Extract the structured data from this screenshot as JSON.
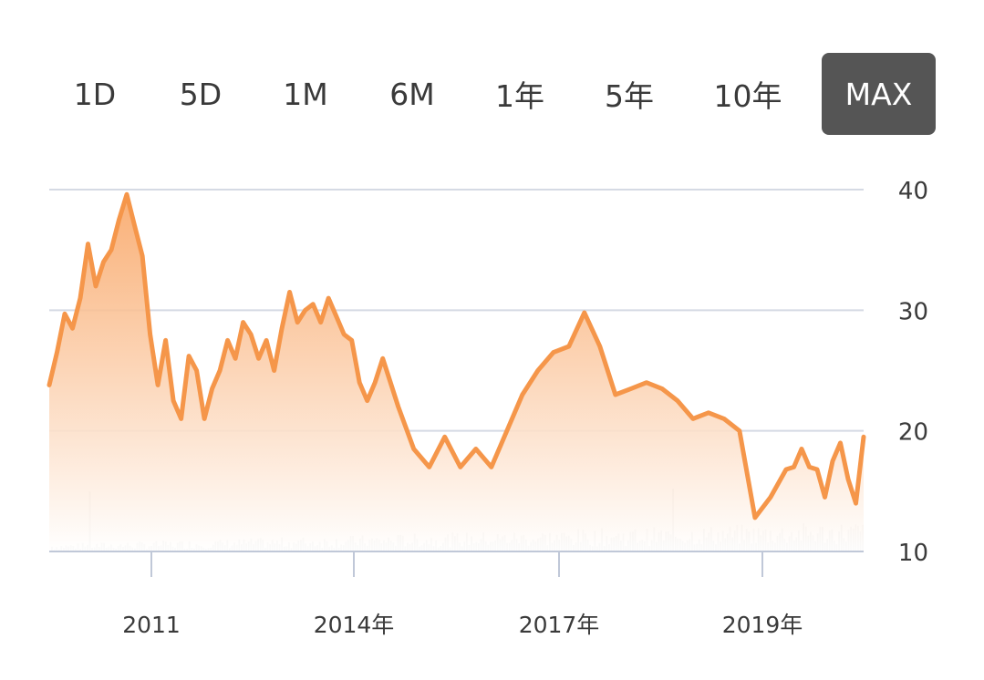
{
  "range_tabs": [
    {
      "label": "1D",
      "active": false
    },
    {
      "label": "5D",
      "active": false
    },
    {
      "label": "1M",
      "active": false
    },
    {
      "label": "6M",
      "active": false
    },
    {
      "label": "1年",
      "active": false
    },
    {
      "label": "5年",
      "active": false
    },
    {
      "label": "10年",
      "active": false
    },
    {
      "label": "MAX",
      "active": true
    }
  ],
  "colors": {
    "line": "#f5964a",
    "fill_top": "#f8a25f",
    "grid": "#d5dae4",
    "volume": "#cccccc",
    "active_tab": "#555555"
  },
  "chart_data": {
    "type": "area",
    "y_axis_position": "right",
    "ylim": [
      10,
      40
    ],
    "y_ticks": [
      "40",
      "30",
      "20",
      "10"
    ],
    "x_ticks": [
      "2011",
      "2014年",
      "2017年",
      "2019年"
    ],
    "grid": "horizontal",
    "x": [
      2009.5,
      2009.6,
      2009.7,
      2009.8,
      2009.9,
      2010.0,
      2010.1,
      2010.2,
      2010.3,
      2010.4,
      2010.5,
      2010.6,
      2010.7,
      2010.8,
      2010.9,
      2011.0,
      2011.1,
      2011.2,
      2011.3,
      2011.4,
      2011.5,
      2011.6,
      2011.7,
      2011.8,
      2011.9,
      2012.0,
      2012.1,
      2012.2,
      2012.3,
      2012.4,
      2012.5,
      2012.6,
      2012.7,
      2012.8,
      2012.9,
      2013.0,
      2013.1,
      2013.2,
      2013.3,
      2013.4,
      2013.5,
      2013.6,
      2013.7,
      2013.8,
      2013.9,
      2014.0,
      2014.2,
      2014.4,
      2014.6,
      2014.8,
      2015.0,
      2015.2,
      2015.4,
      2015.6,
      2015.8,
      2016.0,
      2016.2,
      2016.4,
      2016.6,
      2016.8,
      2017.0,
      2017.2,
      2017.4,
      2017.6,
      2017.8,
      2018.0,
      2018.2,
      2018.4,
      2018.6,
      2018.8,
      2019.0,
      2019.1,
      2019.2,
      2019.3,
      2019.4,
      2019.5,
      2019.6,
      2019.7,
      2019.8,
      2019.9,
      2020.0
    ],
    "series": [
      {
        "values": [
          23.8,
          26.5,
          29.7,
          28.5,
          31.0,
          35.5,
          32.0,
          34.0,
          35.0,
          37.5,
          39.6,
          37.0,
          34.5,
          28.0,
          23.8,
          27.5,
          22.5,
          21.0,
          26.2,
          25.0,
          21.0,
          23.5,
          25.0,
          27.5,
          26.0,
          29.0,
          28.0,
          26.0,
          27.5,
          25.0,
          28.5,
          31.5,
          29.0,
          30.0,
          30.5,
          29.0,
          31.0,
          29.5,
          28.0,
          27.5,
          24.0,
          22.5,
          24.0,
          26.0,
          24.0,
          22.0,
          18.5,
          17.0,
          19.5,
          17.0,
          18.5,
          17.0,
          20.0,
          23.0,
          25.0,
          26.5,
          27.0,
          29.8,
          27.0,
          23.0,
          23.5,
          24.0,
          23.5,
          22.5,
          21.0,
          21.5,
          21.0,
          20.0,
          12.8,
          14.5,
          16.8,
          17.0,
          18.5,
          17.0,
          16.8,
          14.5,
          17.5,
          19.0,
          16.0,
          14.0,
          19.5
        ]
      }
    ],
    "volume_note": "light gray volume bars along the bottom of the plot"
  }
}
